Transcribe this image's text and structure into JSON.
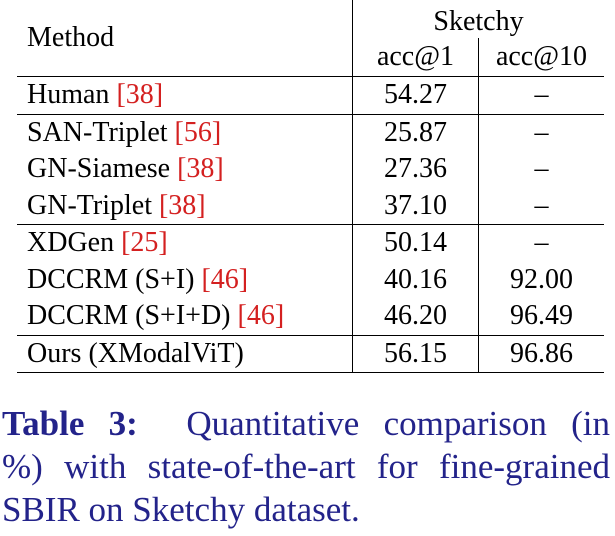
{
  "header": {
    "method": "Method",
    "dataset": "Sketchy",
    "metrics": [
      "acc@1",
      "acc@10"
    ]
  },
  "groups": [
    [
      {
        "method": "Human ",
        "cite": "[38]",
        "acc1": "54.27",
        "acc10": "–"
      }
    ],
    [
      {
        "method": "SAN-Triplet ",
        "cite": "[56]",
        "acc1": "25.87",
        "acc10": "–"
      },
      {
        "method": "GN-Siamese ",
        "cite": "[38]",
        "acc1": "27.36",
        "acc10": "–"
      },
      {
        "method": "GN-Triplet ",
        "cite": "[38]",
        "acc1": "37.10",
        "acc10": "–"
      }
    ],
    [
      {
        "method": "XDGen ",
        "cite": "[25]",
        "acc1": "50.14",
        "acc10": "–"
      },
      {
        "method": "DCCRM (S+I) ",
        "cite": "[46]",
        "acc1": "40.16",
        "acc10": "92.00"
      },
      {
        "method": "DCCRM (S+I+D) ",
        "cite": "[46]",
        "acc1": "46.20",
        "acc10": "96.49"
      }
    ],
    [
      {
        "method": "Ours (XModalViT)",
        "cite": "",
        "acc1": "56.15",
        "acc10": "96.86",
        "bold": true
      }
    ]
  ],
  "caption": {
    "label": "Table 3:",
    "line1_rest": "Quantitative comparison (in",
    "line2": "%) with state-of-the-art for fine-grained",
    "line3": "SBIR on Sketchy dataset."
  },
  "colors": {
    "citation": "#d42020",
    "caption": "#23238a"
  }
}
